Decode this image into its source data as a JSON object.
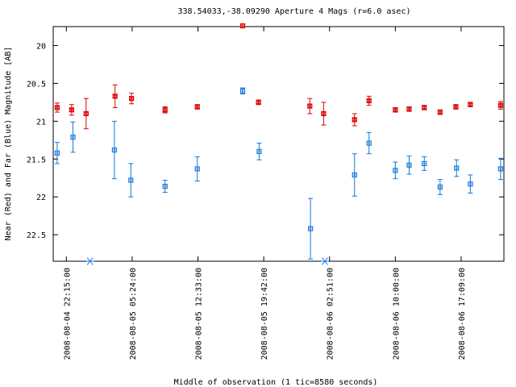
{
  "chart_data": {
    "type": "scatter",
    "title": "338.54033,-38.09290   Aperture 4 Mags (r=6.0 asec)",
    "xlabel": "Middle of observation (1 tic=8580 seconds)",
    "ylabel": "Near (Red) and Far (Blue) Magnitude [AB]",
    "y_inverted": true,
    "ylim": [
      22.85,
      19.75
    ],
    "xlim": [
      -0.2,
      6.65
    ],
    "x_units": "tics after 2008-08-04 22:15:00 (1 tic = 8580 s)",
    "x_ticks": [
      {
        "x": 0,
        "label": "2008-08-04 22:15:00"
      },
      {
        "x": 1,
        "label": "2008-08-05 05:24:00"
      },
      {
        "x": 2,
        "label": "2008-08-05 12:33:00"
      },
      {
        "x": 3,
        "label": "2008-08-05 19:42:00"
      },
      {
        "x": 4,
        "label": "2008-08-06 02:51:00"
      },
      {
        "x": 5,
        "label": "2008-08-06 10:00:00"
      },
      {
        "x": 6,
        "label": "2008-08-06 17:09:00"
      }
    ],
    "y_ticks": [
      {
        "y": 20.0,
        "label": "20"
      },
      {
        "y": 20.5,
        "label": "20.5"
      },
      {
        "y": 21.0,
        "label": "21"
      },
      {
        "y": 21.5,
        "label": "21.5"
      },
      {
        "y": 22.0,
        "label": "22"
      },
      {
        "y": 22.5,
        "label": "22.5"
      }
    ],
    "grid": false,
    "series": [
      {
        "name": "Near (Red)",
        "color": "#dd0000",
        "marker": "x-square",
        "points": [
          {
            "x": -0.14,
            "y": 20.82,
            "err": 0.06
          },
          {
            "x": 0.08,
            "y": 20.85,
            "err": 0.07
          },
          {
            "x": 0.3,
            "y": 20.9,
            "err": 0.2
          },
          {
            "x": 0.74,
            "y": 20.67,
            "err": 0.15
          },
          {
            "x": 0.99,
            "y": 20.7,
            "err": 0.07
          },
          {
            "x": 1.5,
            "y": 20.85,
            "err": 0.04
          },
          {
            "x": 1.99,
            "y": 20.81,
            "err": 0.03
          },
          {
            "x": 2.68,
            "y": 19.74,
            "err": 0.01
          },
          {
            "x": 2.92,
            "y": 20.75,
            "err": 0.03
          },
          {
            "x": 3.7,
            "y": 20.8,
            "err": 0.1
          },
          {
            "x": 3.91,
            "y": 20.9,
            "err": 0.15
          },
          {
            "x": 4.38,
            "y": 20.98,
            "err": 0.08
          },
          {
            "x": 4.6,
            "y": 20.73,
            "err": 0.06
          },
          {
            "x": 5.0,
            "y": 20.85,
            "err": 0.03
          },
          {
            "x": 5.21,
            "y": 20.84,
            "err": 0.03
          },
          {
            "x": 5.44,
            "y": 20.82,
            "err": 0.03
          },
          {
            "x": 5.68,
            "y": 20.88,
            "err": 0.03
          },
          {
            "x": 5.92,
            "y": 20.81,
            "err": 0.03
          },
          {
            "x": 6.14,
            "y": 20.78,
            "err": 0.03
          },
          {
            "x": 6.6,
            "y": 20.79,
            "err": 0.05
          }
        ]
      },
      {
        "name": "Far (Blue)",
        "color": "#1177dd",
        "marker": "square",
        "points": [
          {
            "x": -0.14,
            "y": 21.42,
            "err": 0.14
          },
          {
            "x": 0.1,
            "y": 21.21,
            "err": 0.2
          },
          {
            "x": 0.73,
            "y": 21.38,
            "err": 0.38
          },
          {
            "x": 0.98,
            "y": 21.78,
            "err": 0.22
          },
          {
            "x": 1.5,
            "y": 21.86,
            "err": 0.08
          },
          {
            "x": 1.99,
            "y": 21.63,
            "err": 0.16
          },
          {
            "x": 2.68,
            "y": 20.6,
            "err": 0.04
          },
          {
            "x": 2.93,
            "y": 21.4,
            "err": 0.11
          },
          {
            "x": 3.71,
            "y": 22.42,
            "err": 0.4
          },
          {
            "x": 4.38,
            "y": 21.71,
            "err": 0.28
          },
          {
            "x": 4.6,
            "y": 21.29,
            "err": 0.14
          },
          {
            "x": 5.0,
            "y": 21.65,
            "err": 0.11
          },
          {
            "x": 5.21,
            "y": 21.58,
            "err": 0.12
          },
          {
            "x": 5.44,
            "y": 21.56,
            "err": 0.09
          },
          {
            "x": 5.68,
            "y": 21.87,
            "err": 0.1
          },
          {
            "x": 5.93,
            "y": 21.62,
            "err": 0.11
          },
          {
            "x": 6.14,
            "y": 21.83,
            "err": 0.12
          },
          {
            "x": 6.6,
            "y": 21.63,
            "err": 0.14
          }
        ]
      }
    ],
    "markers": [
      {
        "x": 0.36,
        "y": 22.85,
        "color": "#1177dd",
        "symbol": "asterisk"
      },
      {
        "x": 3.93,
        "y": 22.85,
        "color": "#1177dd",
        "symbol": "asterisk"
      }
    ]
  }
}
